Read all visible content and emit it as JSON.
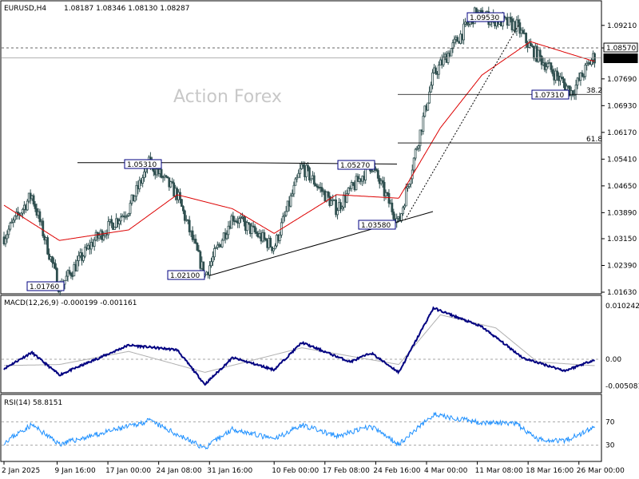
{
  "header": {
    "symbol": "EURUSD,H4",
    "ohlc": "1.08187 1.08346 1.08130 1.08287"
  },
  "watermark": "Action Forex",
  "chart_data": [
    {
      "type": "candlestick",
      "name": "price",
      "y_axis_ticks": [
        "1.09210",
        "1.08570",
        "1.07690",
        "1.06930",
        "1.06170",
        "1.05410",
        "1.04650",
        "1.03890",
        "1.03150",
        "1.02390",
        "1.01630"
      ],
      "ylim": [
        1.0163,
        1.0975
      ],
      "last_price": "1.08287",
      "current_level_label": "1.08570",
      "ma_color": "#dd0000",
      "candle_color": "#2f4f4f",
      "support_resistance": [
        {
          "label": "1.05310",
          "value": 1.0531
        },
        {
          "label": "1.05270",
          "value": 1.0527
        }
      ],
      "fibonacci": [
        {
          "label": "38.2",
          "value": 1.0725
        },
        {
          "label": "61.8",
          "value": 1.0587
        }
      ],
      "price_labels": [
        {
          "text": "1.09530",
          "value": 1.0953
        },
        {
          "text": "1.05310",
          "value": 1.0531
        },
        {
          "text": "1.05270",
          "value": 1.0527
        },
        {
          "text": "1.03580",
          "value": 1.0358
        },
        {
          "text": "1.02100",
          "value": 1.021
        },
        {
          "text": "1.01760",
          "value": 1.0176
        },
        {
          "text": "1.07310",
          "value": 1.0731
        }
      ],
      "path": [
        {
          "date": "2 Jan 2025",
          "value": 1.032
        },
        {
          "date": "6 Jan 2025",
          "value": 1.044
        },
        {
          "date": "10 Jan 2025",
          "value": 1.0176
        },
        {
          "date": "15 Jan 2025",
          "value": 1.031
        },
        {
          "date": "20 Jan 2025",
          "value": 1.04
        },
        {
          "date": "23 Jan 2025",
          "value": 1.0531
        },
        {
          "date": "27 Jan 2025",
          "value": 1.044
        },
        {
          "date": "31 Jan 2025",
          "value": 1.021
        },
        {
          "date": "4 Feb 2025",
          "value": 1.038
        },
        {
          "date": "10 Feb 2025",
          "value": 1.029
        },
        {
          "date": "14 Feb 2025",
          "value": 1.052
        },
        {
          "date": "19 Feb 2025",
          "value": 1.04
        },
        {
          "date": "24 Feb 2025",
          "value": 1.0527
        },
        {
          "date": "28 Feb 2025",
          "value": 1.0358
        },
        {
          "date": "5 Mar 2025",
          "value": 1.078
        },
        {
          "date": "11 Mar 2025",
          "value": 1.0953
        },
        {
          "date": "17 Mar 2025",
          "value": 1.092
        },
        {
          "date": "19 Mar 2025",
          "value": 1.0857
        },
        {
          "date": "25 Mar 2025",
          "value": 1.0731
        },
        {
          "date": "28 Mar 2025",
          "value": 1.0829
        }
      ],
      "ma_path": [
        {
          "date": "2 Jan 2025",
          "value": 1.041
        },
        {
          "date": "10 Jan 2025",
          "value": 1.031
        },
        {
          "date": "20 Jan 2025",
          "value": 1.034
        },
        {
          "date": "27 Jan 2025",
          "value": 1.044
        },
        {
          "date": "4 Feb 2025",
          "value": 1.04
        },
        {
          "date": "10 Feb 2025",
          "value": 1.033
        },
        {
          "date": "19 Feb 2025",
          "value": 1.044
        },
        {
          "date": "28 Feb 2025",
          "value": 1.043
        },
        {
          "date": "6 Mar 2025",
          "value": 1.063
        },
        {
          "date": "12 Mar 2025",
          "value": 1.078
        },
        {
          "date": "19 Mar 2025",
          "value": 1.0875
        },
        {
          "date": "28 Mar 2025",
          "value": 1.082
        }
      ]
    },
    {
      "type": "line",
      "name": "macd",
      "title": "MACD(12,26,9) -0.000199 -0.001161",
      "y_axis_ticks": [
        "0.010242",
        "0.00",
        "-0.005081"
      ],
      "ylim": [
        -0.0061,
        0.0113
      ],
      "zero_level": 0,
      "main_color": "#000080",
      "signal_color": "#b0b0b0",
      "main_path": [
        {
          "date": "2 Jan 2025",
          "value": -0.0018
        },
        {
          "date": "6 Jan 2025",
          "value": 0.0013
        },
        {
          "date": "10 Jan 2025",
          "value": -0.003
        },
        {
          "date": "20 Jan 2025",
          "value": 0.0027
        },
        {
          "date": "27 Jan 2025",
          "value": 0.0018
        },
        {
          "date": "31 Jan 2025",
          "value": -0.0048
        },
        {
          "date": "4 Feb 2025",
          "value": 0.0003
        },
        {
          "date": "10 Feb 2025",
          "value": -0.002
        },
        {
          "date": "14 Feb 2025",
          "value": 0.0032
        },
        {
          "date": "21 Feb 2025",
          "value": -0.0005
        },
        {
          "date": "24 Feb 2025",
          "value": 0.0012
        },
        {
          "date": "28 Feb 2025",
          "value": -0.0025
        },
        {
          "date": "5 Mar 2025",
          "value": 0.0098
        },
        {
          "date": "12 Mar 2025",
          "value": 0.0062
        },
        {
          "date": "18 Mar 2025",
          "value": 0.0002
        },
        {
          "date": "24 Mar 2025",
          "value": -0.0022
        },
        {
          "date": "28 Mar 2025",
          "value": -0.0002
        }
      ],
      "signal_path": [
        {
          "date": "2 Jan 2025",
          "value": -0.0012
        },
        {
          "date": "10 Jan 2025",
          "value": -0.001
        },
        {
          "date": "20 Jan 2025",
          "value": 0.0015
        },
        {
          "date": "31 Jan 2025",
          "value": -0.0025
        },
        {
          "date": "14 Feb 2025",
          "value": 0.0022
        },
        {
          "date": "28 Feb 2025",
          "value": -0.001
        },
        {
          "date": "6 Mar 2025",
          "value": 0.0085
        },
        {
          "date": "14 Mar 2025",
          "value": 0.006
        },
        {
          "date": "20 Mar 2025",
          "value": -0.0005
        },
        {
          "date": "28 Mar 2025",
          "value": -0.0012
        }
      ]
    },
    {
      "type": "line",
      "name": "rsi",
      "title": "RSI(14) 58.8151",
      "y_axis_ticks": [
        "70",
        "30"
      ],
      "ylim": [
        5,
        95
      ],
      "levels": [
        70,
        30
      ],
      "line_color": "#1e90ff",
      "path": [
        {
          "date": "2 Jan 2025",
          "value": 35
        },
        {
          "date": "6 Jan 2025",
          "value": 65
        },
        {
          "date": "10 Jan 2025",
          "value": 32
        },
        {
          "date": "20 Jan 2025",
          "value": 62
        },
        {
          "date": "23 Jan 2025",
          "value": 72
        },
        {
          "date": "31 Jan 2025",
          "value": 25
        },
        {
          "date": "4 Feb 2025",
          "value": 58
        },
        {
          "date": "10 Feb 2025",
          "value": 40
        },
        {
          "date": "14 Feb 2025",
          "value": 65
        },
        {
          "date": "19 Feb 2025",
          "value": 45
        },
        {
          "date": "24 Feb 2025",
          "value": 62
        },
        {
          "date": "28 Feb 2025",
          "value": 32
        },
        {
          "date": "5 Mar 2025",
          "value": 82
        },
        {
          "date": "11 Mar 2025",
          "value": 70
        },
        {
          "date": "17 Mar 2025",
          "value": 66
        },
        {
          "date": "20 Mar 2025",
          "value": 40
        },
        {
          "date": "24 Mar 2025",
          "value": 38
        },
        {
          "date": "28 Mar 2025",
          "value": 58.8
        }
      ]
    }
  ],
  "x_axis": {
    "ticks": [
      "2 Jan 2025",
      "9 Jan 16:00",
      "17 Jan 00:00",
      "24 Jan 08:00",
      "31 Jan 16:00",
      "10 Feb 00:00",
      "17 Feb 08:00",
      "24 Feb 16:00",
      "4 Mar 00:00",
      "11 Mar 08:00",
      "18 Mar 16:00",
      "26 Mar 00:00"
    ]
  }
}
